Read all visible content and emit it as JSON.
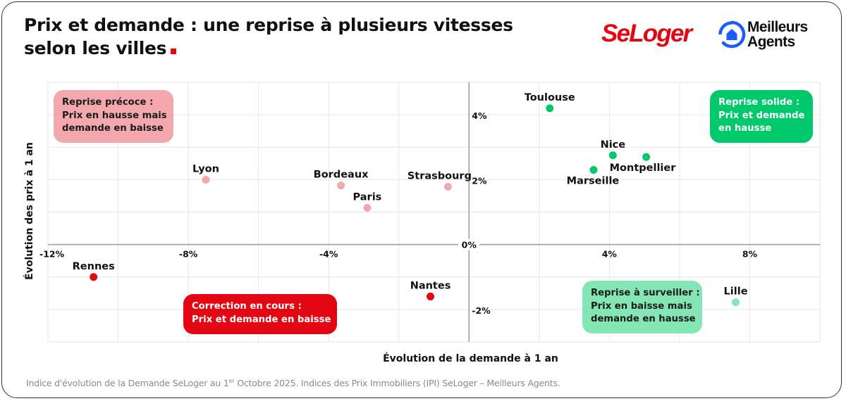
{
  "header": {
    "title_line1": "Prix et demande : une reprise à plusieurs vitesses",
    "title_line2": "selon les villes",
    "logo_seloger": "SeLoger",
    "logo_ma_line1": "Meilleurs",
    "logo_ma_line2": "Agents"
  },
  "colors": {
    "brand_red": "#e30613",
    "pink": "#f3a8ae",
    "green": "#00c96b",
    "light_green": "#84e6b5",
    "ma_blue": "#1a5cff"
  },
  "quadrants": {
    "top_left": {
      "title": "Reprise précoce :",
      "line2": "Prix en hausse mais",
      "line3": "demande en baisse"
    },
    "top_right": {
      "title": "Reprise solide :",
      "line2": "Prix et demande",
      "line3": "en hausse"
    },
    "bottom_left": {
      "title": "Correction en cours :",
      "line2": "Prix et demande en baisse"
    },
    "bottom_right": {
      "title": "Reprise à surveiller :",
      "line2": "Prix en baisse mais",
      "line3": "demande en hausse"
    }
  },
  "footnote": {
    "before": "Indice d'évolution de la Demande SeLoger au 1",
    "sup": "er",
    "after": " Octobre 2025. Indices des Prix Immobiliers (IPI) SeLoger – Meilleurs Agents."
  },
  "chart_data": {
    "type": "scatter",
    "title": "Prix et demande : une reprise à plusieurs vitesses selon les villes",
    "xlabel": "Évolution de la demande à 1 an",
    "ylabel": "Évolution des prix à 1 an",
    "xlim": [
      -12,
      10
    ],
    "ylim": [
      -3,
      5
    ],
    "grid": true,
    "x_grid_step": 2,
    "y_grid_step": 1,
    "x_ticks": [
      {
        "value": -12,
        "label": "-12%"
      },
      {
        "value": -8,
        "label": "-8%"
      },
      {
        "value": -4,
        "label": "-4%"
      },
      {
        "value": 0,
        "label": "0%"
      },
      {
        "value": 4,
        "label": "4%"
      },
      {
        "value": 8,
        "label": "8%"
      }
    ],
    "y_ticks": [
      {
        "value": 4,
        "label": "4%"
      },
      {
        "value": 2,
        "label": "2%"
      },
      {
        "value": -2,
        "label": "-2%"
      }
    ],
    "points": [
      {
        "name": "Toulouse",
        "x": 2.3,
        "y": 4.2,
        "color": "#00c96b",
        "label_pos": "above"
      },
      {
        "name": "Nice",
        "x": 4.1,
        "y": 2.75,
        "color": "#00c96b",
        "label_pos": "above"
      },
      {
        "name": "Montpellier",
        "x": 5.05,
        "y": 2.7,
        "color": "#00c96b",
        "label_pos": "below-right"
      },
      {
        "name": "Marseille",
        "x": 3.55,
        "y": 2.3,
        "color": "#00c96b",
        "label_pos": "below-left"
      },
      {
        "name": "Lyon",
        "x": -7.5,
        "y": 2.0,
        "color": "#f3a8ae",
        "label_pos": "above"
      },
      {
        "name": "Bordeaux",
        "x": -3.65,
        "y": 1.82,
        "color": "#f3a8ae",
        "label_pos": "above"
      },
      {
        "name": "Paris",
        "x": -2.9,
        "y": 1.13,
        "color": "#f3a8ae",
        "label_pos": "above"
      },
      {
        "name": "Strasbourg",
        "x": -0.6,
        "y": 1.78,
        "color": "#f3a8ae",
        "label_pos": "above-left"
      },
      {
        "name": "Rennes",
        "x": -10.7,
        "y": -1.0,
        "color": "#e30613",
        "label_pos": "above"
      },
      {
        "name": "Nantes",
        "x": -1.1,
        "y": -1.6,
        "color": "#e30613",
        "label_pos": "above"
      },
      {
        "name": "Lille",
        "x": 7.6,
        "y": -1.78,
        "color": "#84e6b5",
        "label_pos": "above"
      }
    ]
  }
}
